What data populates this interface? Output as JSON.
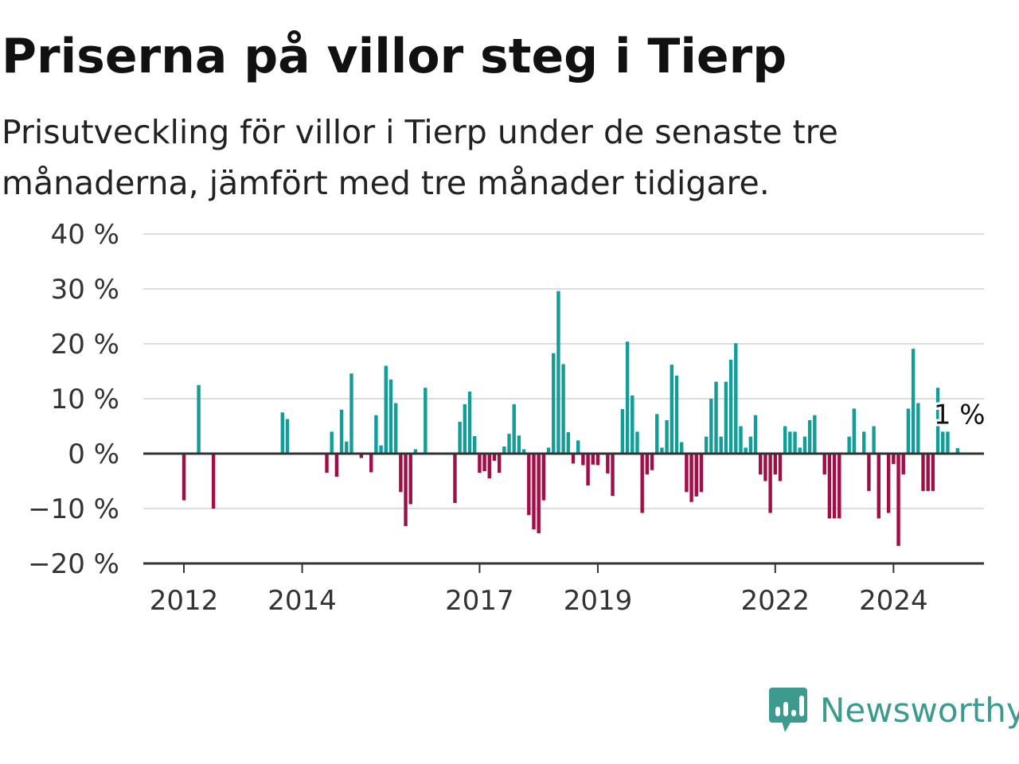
{
  "title": "Priserna på villor steg i Tierp",
  "subtitle": "Prisutveckling för villor i Tierp under de senaste tre månaderna, jämfört med tre månader tidigare.",
  "brand": {
    "name": "Newsworthy",
    "icon": "newsworthy-logo-icon",
    "color": "#3d9a8e"
  },
  "colors": {
    "positive": "#129e98",
    "negative": "#a10d46",
    "grid": "#dddddd",
    "axis": "#333333"
  },
  "chart_data": {
    "type": "bar",
    "title": "Priserna på villor steg i Tierp",
    "xlabel": "",
    "ylabel": "",
    "ylim": [
      -20,
      40
    ],
    "yticks": [
      -20,
      -10,
      0,
      10,
      20,
      30,
      40
    ],
    "ytick_labels": [
      "−20 %",
      "−10 %",
      "0 %",
      "10 %",
      "20 %",
      "30 %",
      "40 %"
    ],
    "xticks": [
      {
        "label": "2012",
        "date": "2012-01"
      },
      {
        "label": "2014",
        "date": "2014-01"
      },
      {
        "label": "2017",
        "date": "2017-01"
      },
      {
        "label": "2019",
        "date": "2019-01"
      },
      {
        "label": "2022",
        "date": "2022-01"
      },
      {
        "label": "2024",
        "date": "2024-01"
      }
    ],
    "grid": true,
    "annotation": {
      "text": "1 %",
      "date": "2025-02",
      "value": 1
    },
    "series": [
      {
        "values": [
          {
            "date": "2012-01",
            "value": -8.5
          },
          {
            "date": "2012-04",
            "value": 12.5
          },
          {
            "date": "2012-07",
            "value": -10
          },
          {
            "date": "2013-09",
            "value": 7.5
          },
          {
            "date": "2013-10",
            "value": 6.3
          },
          {
            "date": "2014-06",
            "value": -3.5
          },
          {
            "date": "2014-07",
            "value": 4
          },
          {
            "date": "2014-08",
            "value": -4.2
          },
          {
            "date": "2014-09",
            "value": 8
          },
          {
            "date": "2014-10",
            "value": 2.2
          },
          {
            "date": "2014-11",
            "value": 14.6
          },
          {
            "date": "2015-01",
            "value": -0.8
          },
          {
            "date": "2015-03",
            "value": -3.4
          },
          {
            "date": "2015-04",
            "value": 7
          },
          {
            "date": "2015-05",
            "value": 1.5
          },
          {
            "date": "2015-06",
            "value": 16
          },
          {
            "date": "2015-07",
            "value": 13.5
          },
          {
            "date": "2015-08",
            "value": 9.2
          },
          {
            "date": "2015-09",
            "value": -7
          },
          {
            "date": "2015-10",
            "value": -13.2
          },
          {
            "date": "2015-11",
            "value": -9.2
          },
          {
            "date": "2015-12",
            "value": 0.8
          },
          {
            "date": "2016-02",
            "value": 12
          },
          {
            "date": "2016-08",
            "value": -9
          },
          {
            "date": "2016-09",
            "value": 5.8
          },
          {
            "date": "2016-10",
            "value": 9
          },
          {
            "date": "2016-11",
            "value": 11.3
          },
          {
            "date": "2016-12",
            "value": 3.2
          },
          {
            "date": "2017-01",
            "value": -3.5
          },
          {
            "date": "2017-02",
            "value": -3.2
          },
          {
            "date": "2017-03",
            "value": -4.5
          },
          {
            "date": "2017-04",
            "value": -1.3
          },
          {
            "date": "2017-05",
            "value": -3.5
          },
          {
            "date": "2017-06",
            "value": 1.3
          },
          {
            "date": "2017-07",
            "value": 3.6
          },
          {
            "date": "2017-08",
            "value": 9
          },
          {
            "date": "2017-09",
            "value": 3.3
          },
          {
            "date": "2017-10",
            "value": 0.8
          },
          {
            "date": "2017-11",
            "value": -11.2
          },
          {
            "date": "2017-12",
            "value": -13.8
          },
          {
            "date": "2018-01",
            "value": -14.5
          },
          {
            "date": "2018-02",
            "value": -8.5
          },
          {
            "date": "2018-03",
            "value": 1.1
          },
          {
            "date": "2018-04",
            "value": 18.3
          },
          {
            "date": "2018-05",
            "value": 29.6
          },
          {
            "date": "2018-06",
            "value": 16.3
          },
          {
            "date": "2018-07",
            "value": 3.9
          },
          {
            "date": "2018-08",
            "value": -1.8
          },
          {
            "date": "2018-09",
            "value": 2.4
          },
          {
            "date": "2018-10",
            "value": -2.1
          },
          {
            "date": "2018-11",
            "value": -5.8
          },
          {
            "date": "2018-12",
            "value": -2
          },
          {
            "date": "2019-01",
            "value": -2.1
          },
          {
            "date": "2019-03",
            "value": -3.6
          },
          {
            "date": "2019-04",
            "value": -7.7
          },
          {
            "date": "2019-06",
            "value": 8.1
          },
          {
            "date": "2019-07",
            "value": 20.4
          },
          {
            "date": "2019-08",
            "value": 10.6
          },
          {
            "date": "2019-09",
            "value": 4
          },
          {
            "date": "2019-10",
            "value": -10.8
          },
          {
            "date": "2019-11",
            "value": -3.8
          },
          {
            "date": "2019-12",
            "value": -3
          },
          {
            "date": "2020-01",
            "value": 7.2
          },
          {
            "date": "2020-02",
            "value": 1.1
          },
          {
            "date": "2020-03",
            "value": 6.1
          },
          {
            "date": "2020-04",
            "value": 16.2
          },
          {
            "date": "2020-05",
            "value": 14.2
          },
          {
            "date": "2020-06",
            "value": 2.1
          },
          {
            "date": "2020-07",
            "value": -7
          },
          {
            "date": "2020-08",
            "value": -8.8
          },
          {
            "date": "2020-09",
            "value": -7.8
          },
          {
            "date": "2020-10",
            "value": -7
          },
          {
            "date": "2020-11",
            "value": 3.1
          },
          {
            "date": "2020-12",
            "value": 10
          },
          {
            "date": "2021-01",
            "value": 13.1
          },
          {
            "date": "2021-02",
            "value": 3.1
          },
          {
            "date": "2021-03",
            "value": 13.1
          },
          {
            "date": "2021-04",
            "value": 17.1
          },
          {
            "date": "2021-05",
            "value": 20.1
          },
          {
            "date": "2021-06",
            "value": 5
          },
          {
            "date": "2021-07",
            "value": 1.1
          },
          {
            "date": "2021-08",
            "value": 3.1
          },
          {
            "date": "2021-09",
            "value": 7
          },
          {
            "date": "2021-10",
            "value": -3.8
          },
          {
            "date": "2021-11",
            "value": -5
          },
          {
            "date": "2021-12",
            "value": -10.8
          },
          {
            "date": "2022-01",
            "value": -3.8
          },
          {
            "date": "2022-02",
            "value": -5
          },
          {
            "date": "2022-03",
            "value": 5
          },
          {
            "date": "2022-04",
            "value": 4
          },
          {
            "date": "2022-05",
            "value": 4
          },
          {
            "date": "2022-06",
            "value": 1.1
          },
          {
            "date": "2022-07",
            "value": 3.1
          },
          {
            "date": "2022-08",
            "value": 6.1
          },
          {
            "date": "2022-09",
            "value": 7
          },
          {
            "date": "2022-11",
            "value": -3.8
          },
          {
            "date": "2022-12",
            "value": -11.8
          },
          {
            "date": "2023-01",
            "value": -11.8
          },
          {
            "date": "2023-02",
            "value": -11.8
          },
          {
            "date": "2023-04",
            "value": 3.1
          },
          {
            "date": "2023-05",
            "value": 8.2
          },
          {
            "date": "2023-07",
            "value": 4
          },
          {
            "date": "2023-08",
            "value": -6.8
          },
          {
            "date": "2023-09",
            "value": 5
          },
          {
            "date": "2023-10",
            "value": -11.8
          },
          {
            "date": "2023-12",
            "value": -10.8
          },
          {
            "date": "2024-01",
            "value": -1.9
          },
          {
            "date": "2024-02",
            "value": -16.8
          },
          {
            "date": "2024-03",
            "value": -3.8
          },
          {
            "date": "2024-04",
            "value": 8.2
          },
          {
            "date": "2024-05",
            "value": 19.1
          },
          {
            "date": "2024-06",
            "value": 9.2
          },
          {
            "date": "2024-07",
            "value": -6.8
          },
          {
            "date": "2024-08",
            "value": -6.8
          },
          {
            "date": "2024-09",
            "value": -6.8
          },
          {
            "date": "2024-10",
            "value": 12
          },
          {
            "date": "2024-11",
            "value": 4
          },
          {
            "date": "2024-12",
            "value": 4
          },
          {
            "date": "2025-02",
            "value": 1
          }
        ]
      }
    ]
  }
}
